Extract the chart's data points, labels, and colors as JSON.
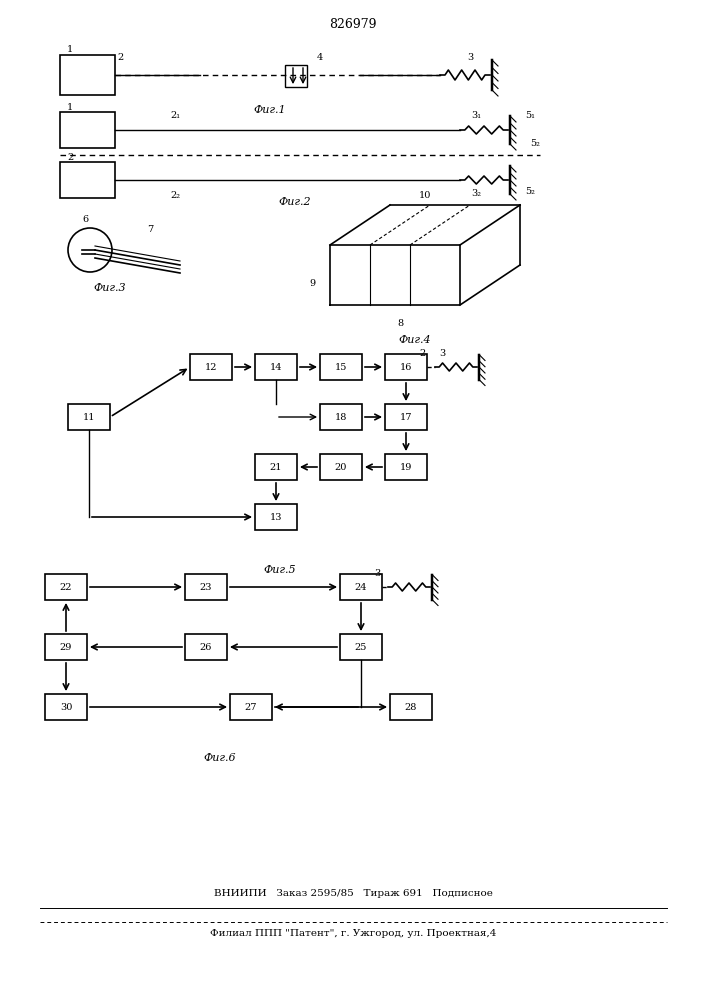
{
  "title": "826979",
  "bg_color": "#ffffff",
  "line_color": "#000000",
  "footer_line1": "ВНИИПИ   Заказ 2595/85   Тираж 691   Подписное",
  "footer_line2": "Филиал ППП \"Патент\", г. Ужгород, ул. Проектная,4"
}
